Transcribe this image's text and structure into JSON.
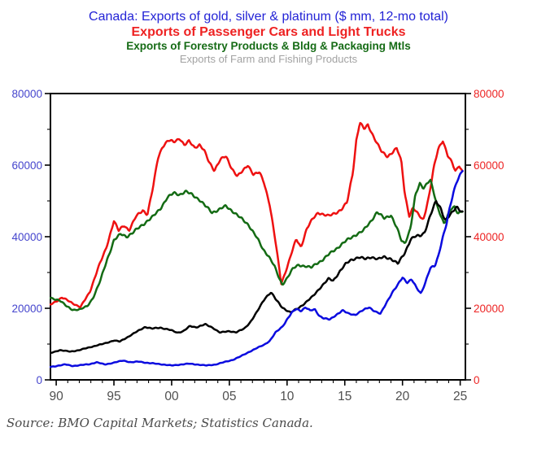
{
  "titles": [
    {
      "text": "Canada: Exports of gold, silver & platinum ($ mm, 12-mo total)",
      "color": "#2323d6"
    },
    {
      "text": "Exports of Passenger Cars and Light Trucks",
      "color": "#ee2222"
    },
    {
      "text": "Exports of Forestry Products & Bldg & Packaging Mtls",
      "color": "#156b15"
    },
    {
      "text": "Exports of Farm and Fishing Products",
      "color": "#a2a2a2"
    }
  ],
  "source": "Source: BMO Capital Markets; Statistics Canada.",
  "chart_data": {
    "type": "line",
    "title": "Canada: Exports of gold, silver & platinum ($ mm, 12-mo total)",
    "xlabel": "",
    "ylabel": "$ mm, 12-month total",
    "grid": false,
    "legend_position": "title-lines-top",
    "x_axis": {
      "range": [
        1989.5,
        2025.45
      ],
      "major_tick_years": [
        1990,
        1995,
        2000,
        2005,
        2010,
        2015,
        2020,
        2025
      ],
      "tick_labels": [
        "90",
        "95",
        "00",
        "05",
        "10",
        "15",
        "20",
        "25"
      ],
      "minor_step_years": 1,
      "label_color": "#4f4f4f"
    },
    "y_axis": {
      "range": [
        0,
        80000
      ],
      "major_step": 20000,
      "minor_step": 10000,
      "tick_labels": [
        "0",
        "20000",
        "40000",
        "60000",
        "80000"
      ],
      "left_label_color": "#4545cd",
      "right_label_color": "#ed2424",
      "dual_axis_same_scale": true
    },
    "frame_color": "#000000",
    "series": [
      {
        "id": "gold-silver-platinum",
        "name": "Exports of gold, silver & platinum",
        "color": "#0b0bdf",
        "draw_order": 4,
        "seed": 4,
        "points": [
          [
            1989.5,
            3600
          ],
          [
            1990.2,
            4000
          ],
          [
            1990.8,
            4300
          ],
          [
            1991.4,
            3900
          ],
          [
            1992.1,
            4100
          ],
          [
            1992.9,
            4400
          ],
          [
            1993.5,
            4900
          ],
          [
            1994.2,
            4300
          ],
          [
            1995.0,
            4800
          ],
          [
            1995.8,
            5400
          ],
          [
            1996.5,
            4900
          ],
          [
            1997.2,
            5100
          ],
          [
            1998.0,
            4700
          ],
          [
            1999.0,
            4400
          ],
          [
            2000.0,
            4000
          ],
          [
            2000.8,
            4300
          ],
          [
            2001.5,
            4500
          ],
          [
            2002.2,
            4300
          ],
          [
            2003.0,
            4000
          ],
          [
            2003.8,
            4300
          ],
          [
            2004.5,
            4900
          ],
          [
            2005.3,
            5600
          ],
          [
            2006.0,
            6600
          ],
          [
            2006.7,
            7800
          ],
          [
            2007.4,
            8900
          ],
          [
            2008.0,
            9800
          ],
          [
            2008.5,
            10900
          ],
          [
            2009.0,
            13200
          ],
          [
            2009.6,
            14900
          ],
          [
            2010.0,
            16900
          ],
          [
            2010.4,
            18700
          ],
          [
            2010.8,
            19800
          ],
          [
            2011.2,
            19300
          ],
          [
            2011.6,
            20300
          ],
          [
            2012.0,
            19300
          ],
          [
            2012.4,
            19700
          ],
          [
            2012.8,
            17900
          ],
          [
            2013.2,
            17200
          ],
          [
            2013.7,
            16800
          ],
          [
            2014.3,
            18300
          ],
          [
            2014.8,
            19400
          ],
          [
            2015.3,
            18500
          ],
          [
            2015.9,
            18200
          ],
          [
            2016.4,
            19100
          ],
          [
            2017.1,
            20300
          ],
          [
            2017.7,
            19000
          ],
          [
            2018.1,
            18400
          ],
          [
            2018.6,
            21500
          ],
          [
            2019.1,
            24400
          ],
          [
            2019.6,
            26500
          ],
          [
            2020.0,
            28600
          ],
          [
            2020.4,
            27300
          ],
          [
            2020.8,
            28100
          ],
          [
            2021.2,
            25700
          ],
          [
            2021.6,
            24100
          ],
          [
            2022.0,
            27500
          ],
          [
            2022.4,
            31200
          ],
          [
            2022.8,
            31700
          ],
          [
            2023.1,
            34500
          ],
          [
            2023.4,
            38900
          ],
          [
            2023.8,
            43500
          ],
          [
            2024.1,
            48000
          ],
          [
            2024.4,
            52000
          ],
          [
            2024.7,
            55500
          ],
          [
            2025.0,
            57500
          ],
          [
            2025.2,
            58700
          ]
        ]
      },
      {
        "id": "passenger-cars-light-trucks",
        "name": "Exports of Passenger Cars and Light Trucks",
        "color": "#ee1111",
        "draw_order": 1,
        "seed": 1,
        "points": [
          [
            1989.5,
            21000
          ],
          [
            1990.1,
            22200
          ],
          [
            1990.5,
            23000
          ],
          [
            1991.2,
            21800
          ],
          [
            1992.1,
            20300
          ],
          [
            1992.9,
            24500
          ],
          [
            1993.6,
            31000
          ],
          [
            1994.3,
            36500
          ],
          [
            1995.0,
            44500
          ],
          [
            1995.4,
            41600
          ],
          [
            1995.9,
            43200
          ],
          [
            1996.3,
            41800
          ],
          [
            1996.9,
            45500
          ],
          [
            1997.5,
            47400
          ],
          [
            1997.9,
            46300
          ],
          [
            1998.4,
            53900
          ],
          [
            1998.8,
            61800
          ],
          [
            1999.2,
            65200
          ],
          [
            1999.7,
            66900
          ],
          [
            2000.2,
            66400
          ],
          [
            2000.7,
            67600
          ],
          [
            2001.1,
            65600
          ],
          [
            2001.5,
            66600
          ],
          [
            2002.0,
            64900
          ],
          [
            2002.4,
            65800
          ],
          [
            2002.8,
            64200
          ],
          [
            2003.2,
            61000
          ],
          [
            2003.7,
            58600
          ],
          [
            2004.2,
            61500
          ],
          [
            2004.7,
            62400
          ],
          [
            2005.2,
            59200
          ],
          [
            2005.7,
            56900
          ],
          [
            2006.2,
            58400
          ],
          [
            2006.6,
            60100
          ],
          [
            2007.1,
            57400
          ],
          [
            2007.6,
            57900
          ],
          [
            2008.0,
            55200
          ],
          [
            2008.5,
            49000
          ],
          [
            2009.0,
            38500
          ],
          [
            2009.5,
            26900
          ],
          [
            2010.0,
            31500
          ],
          [
            2010.4,
            35500
          ],
          [
            2010.8,
            39300
          ],
          [
            2011.2,
            37100
          ],
          [
            2011.7,
            42200
          ],
          [
            2012.2,
            44800
          ],
          [
            2012.7,
            46800
          ],
          [
            2013.2,
            46200
          ],
          [
            2013.6,
            45700
          ],
          [
            2014.1,
            46500
          ],
          [
            2014.7,
            47600
          ],
          [
            2015.2,
            49500
          ],
          [
            2015.7,
            58000
          ],
          [
            2016.0,
            67000
          ],
          [
            2016.3,
            71900
          ],
          [
            2016.7,
            70000
          ],
          [
            2017.0,
            71200
          ],
          [
            2017.6,
            67400
          ],
          [
            2018.2,
            63600
          ],
          [
            2018.7,
            62400
          ],
          [
            2019.1,
            63600
          ],
          [
            2019.5,
            64700
          ],
          [
            2019.9,
            61000
          ],
          [
            2020.2,
            52000
          ],
          [
            2020.6,
            45700
          ],
          [
            2020.9,
            48100
          ],
          [
            2021.3,
            46400
          ],
          [
            2021.8,
            44700
          ],
          [
            2022.3,
            51400
          ],
          [
            2022.7,
            59000
          ],
          [
            2023.1,
            64600
          ],
          [
            2023.5,
            67000
          ],
          [
            2023.9,
            62800
          ],
          [
            2024.3,
            60500
          ],
          [
            2024.6,
            58200
          ],
          [
            2024.9,
            60100
          ],
          [
            2025.2,
            58200
          ]
        ]
      },
      {
        "id": "forestry-bldg-packaging",
        "name": "Exports of Forestry Products & Bldg & Packaging Mtls",
        "color": "#146b14",
        "draw_order": 2,
        "seed": 2,
        "points": [
          [
            1989.5,
            22800
          ],
          [
            1990.3,
            22300
          ],
          [
            1990.9,
            20500
          ],
          [
            1991.4,
            19600
          ],
          [
            1992.1,
            19700
          ],
          [
            1992.7,
            20600
          ],
          [
            1993.2,
            23000
          ],
          [
            1993.8,
            27500
          ],
          [
            1994.4,
            33500
          ],
          [
            1995.0,
            39000
          ],
          [
            1995.6,
            40700
          ],
          [
            1996.1,
            40100
          ],
          [
            1996.6,
            41000
          ],
          [
            1997.2,
            42600
          ],
          [
            1997.8,
            44200
          ],
          [
            1998.4,
            45600
          ],
          [
            1999.0,
            47800
          ],
          [
            1999.6,
            50800
          ],
          [
            2000.2,
            52200
          ],
          [
            2000.7,
            51800
          ],
          [
            2001.2,
            52600
          ],
          [
            2001.8,
            51700
          ],
          [
            2002.4,
            50400
          ],
          [
            2002.9,
            48600
          ],
          [
            2003.5,
            46800
          ],
          [
            2004.1,
            47600
          ],
          [
            2004.7,
            48500
          ],
          [
            2005.4,
            46900
          ],
          [
            2006.0,
            45100
          ],
          [
            2006.7,
            43200
          ],
          [
            2007.3,
            40200
          ],
          [
            2007.9,
            36500
          ],
          [
            2008.4,
            34700
          ],
          [
            2008.9,
            31800
          ],
          [
            2009.3,
            28400
          ],
          [
            2009.6,
            26600
          ],
          [
            2010.1,
            29000
          ],
          [
            2010.5,
            31000
          ],
          [
            2011.0,
            32100
          ],
          [
            2011.6,
            31800
          ],
          [
            2012.1,
            31300
          ],
          [
            2012.5,
            32400
          ],
          [
            2013.1,
            33600
          ],
          [
            2013.8,
            35500
          ],
          [
            2014.5,
            37300
          ],
          [
            2015.2,
            39000
          ],
          [
            2015.9,
            40500
          ],
          [
            2016.6,
            41600
          ],
          [
            2017.2,
            44100
          ],
          [
            2017.8,
            46900
          ],
          [
            2018.4,
            45100
          ],
          [
            2019.0,
            46100
          ],
          [
            2019.5,
            42500
          ],
          [
            2019.9,
            38900
          ],
          [
            2020.2,
            38100
          ],
          [
            2020.7,
            42500
          ],
          [
            2021.1,
            51300
          ],
          [
            2021.5,
            54800
          ],
          [
            2021.8,
            53700
          ],
          [
            2022.4,
            56000
          ],
          [
            2023.0,
            48500
          ],
          [
            2023.6,
            43800
          ],
          [
            2024.2,
            47600
          ],
          [
            2024.5,
            48200
          ],
          [
            2024.8,
            46600
          ],
          [
            2025.2,
            47400
          ]
        ]
      },
      {
        "id": "farm-fishing",
        "name": "Exports of Farm and Fishing Products",
        "color": "#000000",
        "draw_order": 3,
        "seed": 3,
        "points": [
          [
            1989.5,
            7500
          ],
          [
            1990.3,
            8300
          ],
          [
            1991.2,
            7900
          ],
          [
            1992.0,
            8300
          ],
          [
            1993.0,
            9200
          ],
          [
            1994.0,
            10000
          ],
          [
            1995.0,
            11000
          ],
          [
            1995.5,
            10700
          ],
          [
            1996.1,
            11800
          ],
          [
            1997.0,
            13500
          ],
          [
            1997.7,
            14800
          ],
          [
            1998.3,
            14300
          ],
          [
            1999.0,
            14600
          ],
          [
            1999.8,
            14000
          ],
          [
            2000.5,
            13200
          ],
          [
            2001.0,
            13600
          ],
          [
            2001.6,
            15000
          ],
          [
            2002.1,
            14700
          ],
          [
            2002.9,
            15500
          ],
          [
            2003.6,
            14500
          ],
          [
            2004.2,
            13200
          ],
          [
            2005.0,
            13600
          ],
          [
            2005.6,
            13300
          ],
          [
            2006.3,
            14300
          ],
          [
            2006.8,
            16100
          ],
          [
            2007.4,
            19000
          ],
          [
            2008.1,
            22900
          ],
          [
            2008.6,
            24500
          ],
          [
            2009.1,
            22100
          ],
          [
            2009.6,
            20200
          ],
          [
            2010.3,
            18800
          ],
          [
            2011.0,
            20100
          ],
          [
            2011.6,
            21600
          ],
          [
            2012.2,
            23200
          ],
          [
            2012.9,
            25900
          ],
          [
            2013.6,
            28200
          ],
          [
            2014.0,
            27700
          ],
          [
            2014.6,
            30500
          ],
          [
            2015.1,
            32400
          ],
          [
            2015.6,
            33600
          ],
          [
            2016.2,
            34300
          ],
          [
            2016.8,
            33700
          ],
          [
            2017.3,
            34400
          ],
          [
            2017.9,
            33700
          ],
          [
            2018.4,
            34300
          ],
          [
            2019.0,
            33900
          ],
          [
            2019.6,
            32400
          ],
          [
            2020.2,
            35500
          ],
          [
            2020.7,
            39300
          ],
          [
            2021.1,
            40000
          ],
          [
            2021.5,
            40200
          ],
          [
            2021.9,
            41200
          ],
          [
            2022.4,
            45800
          ],
          [
            2022.9,
            49900
          ],
          [
            2023.3,
            48100
          ],
          [
            2023.7,
            44600
          ],
          [
            2024.2,
            46200
          ],
          [
            2024.7,
            48400
          ],
          [
            2025.2,
            46900
          ]
        ]
      }
    ]
  }
}
